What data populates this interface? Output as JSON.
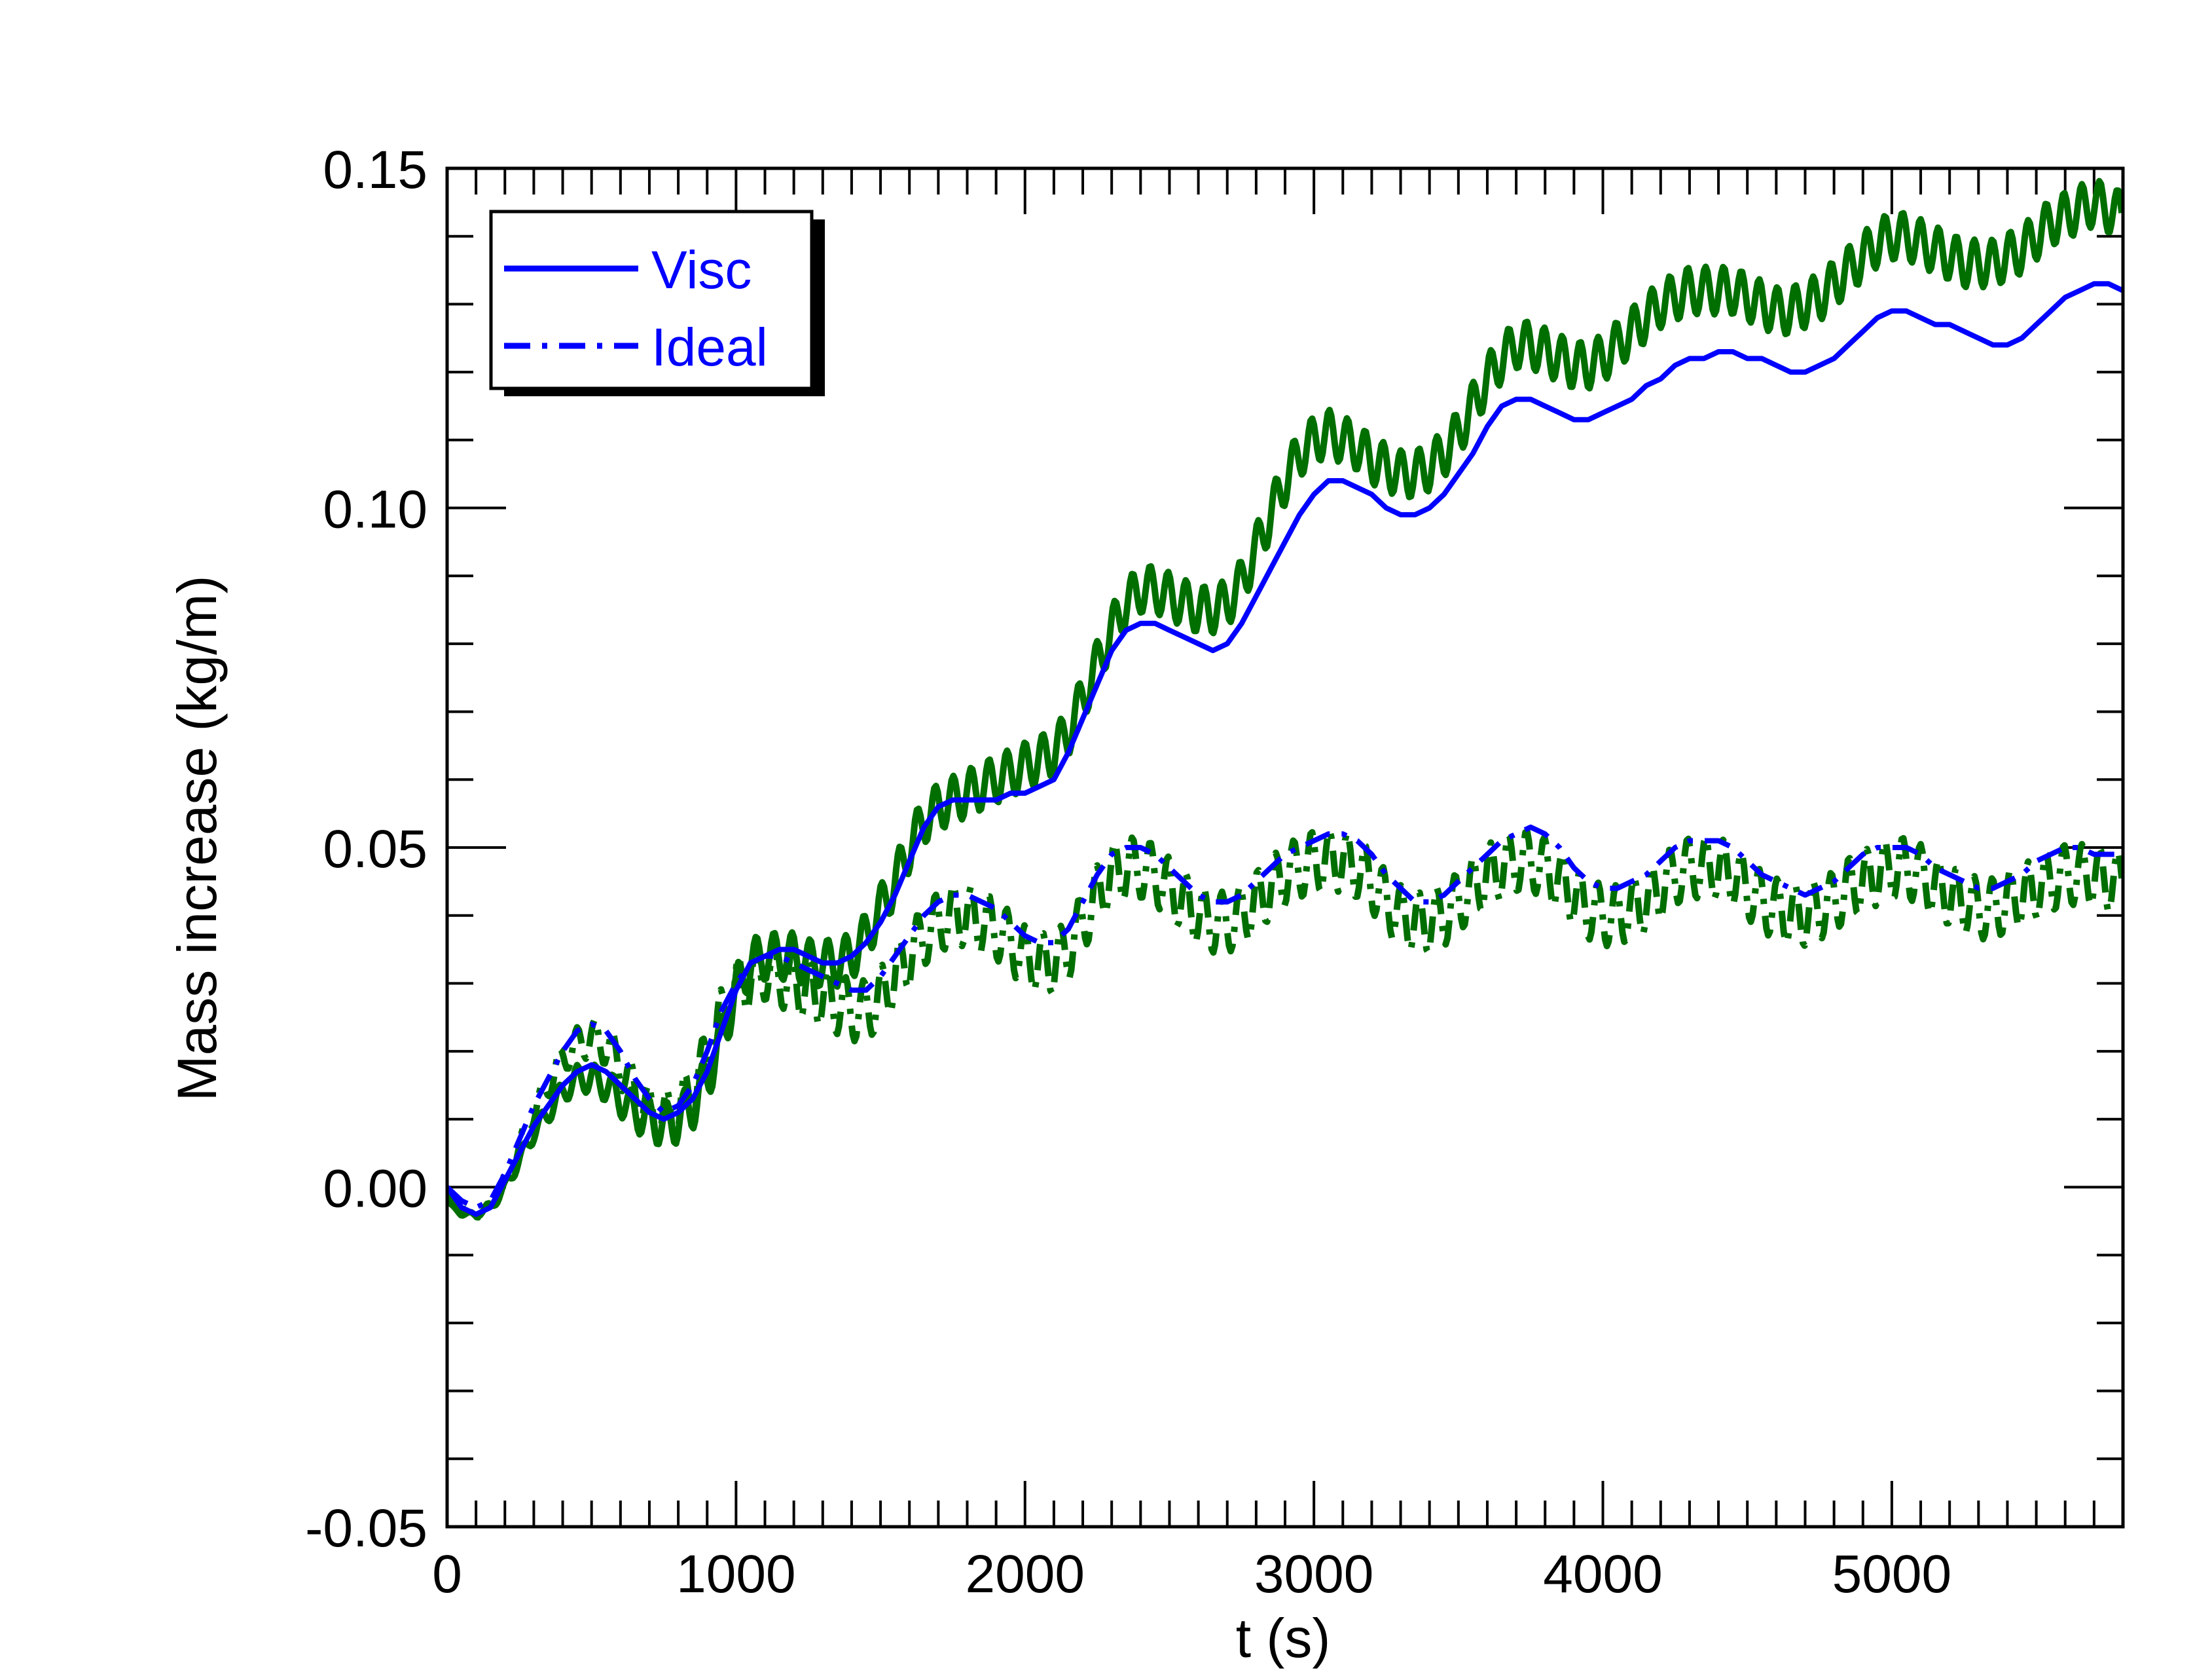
{
  "chart_data": {
    "type": "line",
    "title": "",
    "xlabel": "t (s)",
    "ylabel": "Mass increase (kg/m)",
    "xlim": [
      0,
      5800
    ],
    "ylim": [
      -0.05,
      0.15
    ],
    "x_ticks": [
      0,
      1000,
      2000,
      3000,
      4000,
      5000
    ],
    "x_tick_labels": [
      "0",
      "1000",
      "2000",
      "3000",
      "4000",
      "5000"
    ],
    "y_ticks": [
      -0.05,
      0.0,
      0.05,
      0.1,
      0.15
    ],
    "y_tick_labels": [
      "-0.05",
      "0.00",
      "0.05",
      "0.10",
      "0.15"
    ],
    "x_minor_step": 100,
    "y_minor_step": 0.01,
    "grid": false,
    "legend_position": "top-left",
    "legend": [
      {
        "label": "Visc",
        "style": "solid",
        "color": "#0000ff"
      },
      {
        "label": "Ideal",
        "style": "dashdot",
        "color": "#0000ff"
      }
    ],
    "series": [
      {
        "name": "Visc",
        "color": "#0000ff",
        "style": "solid",
        "x": [
          0,
          50,
          100,
          150,
          200,
          250,
          300,
          350,
          400,
          450,
          500,
          550,
          600,
          650,
          700,
          750,
          800,
          850,
          900,
          950,
          1000,
          1050,
          1100,
          1150,
          1200,
          1250,
          1300,
          1350,
          1400,
          1450,
          1500,
          1550,
          1600,
          1650,
          1700,
          1750,
          1800,
          1850,
          1900,
          1950,
          2000,
          2050,
          2100,
          2150,
          2200,
          2250,
          2300,
          2350,
          2400,
          2450,
          2500,
          2550,
          2600,
          2650,
          2700,
          2750,
          2800,
          2850,
          2900,
          2950,
          3000,
          3050,
          3100,
          3150,
          3200,
          3250,
          3300,
          3350,
          3400,
          3450,
          3500,
          3550,
          3600,
          3650,
          3700,
          3750,
          3800,
          3850,
          3900,
          3950,
          4000,
          4050,
          4100,
          4150,
          4200,
          4250,
          4300,
          4350,
          4400,
          4450,
          4500,
          4550,
          4600,
          4650,
          4700,
          4750,
          4800,
          4850,
          4900,
          4950,
          5000,
          5050,
          5100,
          5150,
          5200,
          5250,
          5300,
          5350,
          5400,
          5450,
          5500,
          5550,
          5600,
          5650,
          5700,
          5750,
          5800
        ],
        "y": [
          0.0,
          -0.003,
          -0.004,
          -0.003,
          0.001,
          0.005,
          0.009,
          0.012,
          0.015,
          0.017,
          0.018,
          0.017,
          0.015,
          0.013,
          0.011,
          0.01,
          0.011,
          0.013,
          0.017,
          0.023,
          0.029,
          0.033,
          0.034,
          0.035,
          0.035,
          0.034,
          0.033,
          0.033,
          0.034,
          0.036,
          0.039,
          0.043,
          0.048,
          0.053,
          0.056,
          0.057,
          0.057,
          0.057,
          0.057,
          0.058,
          0.058,
          0.059,
          0.06,
          0.064,
          0.069,
          0.074,
          0.079,
          0.082,
          0.083,
          0.083,
          0.082,
          0.081,
          0.08,
          0.079,
          0.08,
          0.083,
          0.087,
          0.091,
          0.095,
          0.099,
          0.102,
          0.104,
          0.104,
          0.103,
          0.102,
          0.1,
          0.099,
          0.099,
          0.1,
          0.102,
          0.105,
          0.108,
          0.112,
          0.115,
          0.116,
          0.116,
          0.115,
          0.114,
          0.113,
          0.113,
          0.114,
          0.115,
          0.116,
          0.118,
          0.119,
          0.121,
          0.122,
          0.122,
          0.123,
          0.123,
          0.122,
          0.122,
          0.121,
          0.12,
          0.12,
          0.121,
          0.122,
          0.124,
          0.126,
          0.128,
          0.129,
          0.129,
          0.128,
          0.127,
          0.127,
          0.126,
          0.125,
          0.124,
          0.124,
          0.125,
          0.127,
          0.129,
          0.131,
          0.132,
          0.133,
          0.133,
          0.132
        ]
      },
      {
        "name": "Ideal",
        "color": "#0000ff",
        "style": "dashdot",
        "x": [
          0,
          50,
          100,
          150,
          200,
          250,
          300,
          350,
          400,
          450,
          500,
          550,
          600,
          650,
          700,
          750,
          800,
          850,
          900,
          950,
          1000,
          1050,
          1100,
          1150,
          1200,
          1250,
          1300,
          1350,
          1400,
          1450,
          1500,
          1550,
          1600,
          1650,
          1700,
          1750,
          1800,
          1850,
          1900,
          1950,
          2000,
          2050,
          2100,
          2150,
          2200,
          2250,
          2300,
          2350,
          2400,
          2450,
          2500,
          2550,
          2600,
          2650,
          2700,
          2750,
          2800,
          2850,
          2900,
          2950,
          3000,
          3050,
          3100,
          3150,
          3200,
          3250,
          3300,
          3350,
          3400,
          3450,
          3500,
          3550,
          3600,
          3650,
          3700,
          3750,
          3800,
          3850,
          3900,
          3950,
          4000,
          4050,
          4100,
          4150,
          4200,
          4250,
          4300,
          4350,
          4400,
          4450,
          4500,
          4550,
          4600,
          4650,
          4700,
          4750,
          4800,
          4850,
          4900,
          4950,
          5000,
          5050,
          5100,
          5150,
          5200,
          5250,
          5300,
          5350,
          5400,
          5450,
          5500,
          5550,
          5600,
          5650,
          5700,
          5750,
          5800
        ],
        "y": [
          0.0,
          -0.002,
          -0.003,
          -0.002,
          0.002,
          0.007,
          0.012,
          0.016,
          0.02,
          0.023,
          0.024,
          0.023,
          0.02,
          0.016,
          0.013,
          0.011,
          0.012,
          0.015,
          0.02,
          0.026,
          0.03,
          0.033,
          0.034,
          0.034,
          0.033,
          0.032,
          0.031,
          0.03,
          0.029,
          0.029,
          0.031,
          0.034,
          0.037,
          0.04,
          0.042,
          0.043,
          0.043,
          0.042,
          0.041,
          0.039,
          0.037,
          0.036,
          0.036,
          0.038,
          0.042,
          0.046,
          0.049,
          0.05,
          0.05,
          0.049,
          0.047,
          0.045,
          0.043,
          0.042,
          0.042,
          0.043,
          0.045,
          0.047,
          0.049,
          0.05,
          0.051,
          0.052,
          0.052,
          0.051,
          0.049,
          0.046,
          0.044,
          0.042,
          0.042,
          0.043,
          0.045,
          0.047,
          0.049,
          0.051,
          0.052,
          0.053,
          0.052,
          0.05,
          0.047,
          0.045,
          0.044,
          0.044,
          0.045,
          0.046,
          0.048,
          0.05,
          0.051,
          0.051,
          0.051,
          0.05,
          0.048,
          0.046,
          0.045,
          0.044,
          0.043,
          0.044,
          0.045,
          0.047,
          0.049,
          0.05,
          0.05,
          0.05,
          0.049,
          0.047,
          0.046,
          0.045,
          0.044,
          0.044,
          0.045,
          0.046,
          0.048,
          0.049,
          0.05,
          0.05,
          0.049,
          0.049,
          0.049
        ]
      },
      {
        "name": "",
        "color": "#006f00",
        "style": "solid",
        "oscillation": {
          "period": 62,
          "amplitude": 0.0035
        },
        "x": [
          0,
          50,
          100,
          150,
          200,
          250,
          300,
          350,
          400,
          450,
          500,
          550,
          600,
          650,
          700,
          750,
          800,
          850,
          900,
          950,
          1000,
          1050,
          1100,
          1150,
          1200,
          1250,
          1300,
          1350,
          1400,
          1450,
          1500,
          1550,
          1600,
          1650,
          1700,
          1750,
          1800,
          1850,
          1900,
          1950,
          2000,
          2050,
          2100,
          2150,
          2200,
          2250,
          2300,
          2350,
          2400,
          2450,
          2500,
          2550,
          2600,
          2650,
          2700,
          2750,
          2800,
          2850,
          2900,
          2950,
          3000,
          3050,
          3100,
          3150,
          3200,
          3250,
          3300,
          3350,
          3400,
          3450,
          3500,
          3550,
          3600,
          3650,
          3700,
          3750,
          3800,
          3850,
          3900,
          3950,
          4000,
          4050,
          4100,
          4150,
          4200,
          4250,
          4300,
          4350,
          4400,
          4450,
          4500,
          4550,
          4600,
          4650,
          4700,
          4750,
          4800,
          4850,
          4900,
          4950,
          5000,
          5050,
          5100,
          5150,
          5200,
          5250,
          5300,
          5350,
          5400,
          5450,
          5500,
          5550,
          5600,
          5650,
          5700,
          5750,
          5800
        ],
        "y": [
          -0.002,
          -0.004,
          -0.004,
          -0.003,
          0.0,
          0.004,
          0.008,
          0.011,
          0.014,
          0.016,
          0.016,
          0.015,
          0.013,
          0.011,
          0.01,
          0.009,
          0.01,
          0.012,
          0.016,
          0.022,
          0.029,
          0.033,
          0.034,
          0.034,
          0.034,
          0.033,
          0.033,
          0.033,
          0.034,
          0.037,
          0.041,
          0.045,
          0.05,
          0.054,
          0.056,
          0.057,
          0.058,
          0.059,
          0.06,
          0.061,
          0.062,
          0.063,
          0.064,
          0.067,
          0.072,
          0.077,
          0.082,
          0.086,
          0.088,
          0.088,
          0.087,
          0.086,
          0.085,
          0.085,
          0.086,
          0.089,
          0.094,
          0.099,
          0.104,
          0.108,
          0.11,
          0.111,
          0.11,
          0.109,
          0.107,
          0.106,
          0.105,
          0.105,
          0.106,
          0.108,
          0.111,
          0.115,
          0.119,
          0.122,
          0.124,
          0.124,
          0.123,
          0.122,
          0.121,
          0.121,
          0.122,
          0.124,
          0.126,
          0.128,
          0.13,
          0.131,
          0.132,
          0.132,
          0.132,
          0.132,
          0.131,
          0.13,
          0.129,
          0.129,
          0.13,
          0.131,
          0.133,
          0.135,
          0.137,
          0.139,
          0.14,
          0.14,
          0.139,
          0.138,
          0.137,
          0.136,
          0.136,
          0.136,
          0.137,
          0.138,
          0.14,
          0.142,
          0.143,
          0.144,
          0.145,
          0.144,
          0.143
        ]
      },
      {
        "name": "",
        "color": "#006f00",
        "style": "dashdot",
        "oscillation": {
          "period": 62,
          "amplitude": 0.0045
        },
        "x": [
          0,
          50,
          100,
          150,
          200,
          250,
          300,
          350,
          400,
          450,
          500,
          550,
          600,
          650,
          700,
          750,
          800,
          850,
          900,
          950,
          1000,
          1050,
          1100,
          1150,
          1200,
          1250,
          1300,
          1350,
          1400,
          1450,
          1500,
          1550,
          1600,
          1650,
          1700,
          1750,
          1800,
          1850,
          1900,
          1950,
          2000,
          2050,
          2100,
          2150,
          2200,
          2250,
          2300,
          2350,
          2400,
          2450,
          2500,
          2550,
          2600,
          2650,
          2700,
          2750,
          2800,
          2850,
          2900,
          2950,
          3000,
          3050,
          3100,
          3150,
          3200,
          3250,
          3300,
          3350,
          3400,
          3450,
          3500,
          3550,
          3600,
          3650,
          3700,
          3750,
          3800,
          3850,
          3900,
          3950,
          4000,
          4050,
          4100,
          4150,
          4200,
          4250,
          4300,
          4350,
          4400,
          4450,
          4500,
          4550,
          4600,
          4650,
          4700,
          4750,
          4800,
          4850,
          4900,
          4950,
          5000,
          5050,
          5100,
          5150,
          5200,
          5250,
          5300,
          5350,
          5400,
          5450,
          5500,
          5550,
          5600,
          5650,
          5700,
          5750,
          5800
        ],
        "y": [
          -0.001,
          -0.003,
          -0.004,
          -0.003,
          0.001,
          0.006,
          0.011,
          0.015,
          0.019,
          0.021,
          0.022,
          0.021,
          0.018,
          0.014,
          0.011,
          0.01,
          0.011,
          0.014,
          0.019,
          0.025,
          0.029,
          0.031,
          0.032,
          0.031,
          0.03,
          0.029,
          0.028,
          0.027,
          0.026,
          0.026,
          0.028,
          0.031,
          0.034,
          0.037,
          0.039,
          0.04,
          0.04,
          0.039,
          0.038,
          0.036,
          0.034,
          0.033,
          0.033,
          0.035,
          0.039,
          0.043,
          0.046,
          0.047,
          0.047,
          0.046,
          0.044,
          0.042,
          0.04,
          0.039,
          0.039,
          0.04,
          0.042,
          0.044,
          0.046,
          0.047,
          0.048,
          0.048,
          0.048,
          0.047,
          0.045,
          0.042,
          0.04,
          0.039,
          0.039,
          0.04,
          0.042,
          0.044,
          0.046,
          0.047,
          0.048,
          0.048,
          0.047,
          0.045,
          0.043,
          0.041,
          0.04,
          0.04,
          0.041,
          0.042,
          0.044,
          0.046,
          0.047,
          0.047,
          0.047,
          0.046,
          0.044,
          0.042,
          0.041,
          0.04,
          0.04,
          0.041,
          0.042,
          0.044,
          0.045,
          0.046,
          0.047,
          0.047,
          0.046,
          0.044,
          0.043,
          0.042,
          0.041,
          0.041,
          0.042,
          0.043,
          0.044,
          0.045,
          0.046,
          0.046,
          0.046,
          0.045,
          0.045
        ]
      }
    ]
  }
}
